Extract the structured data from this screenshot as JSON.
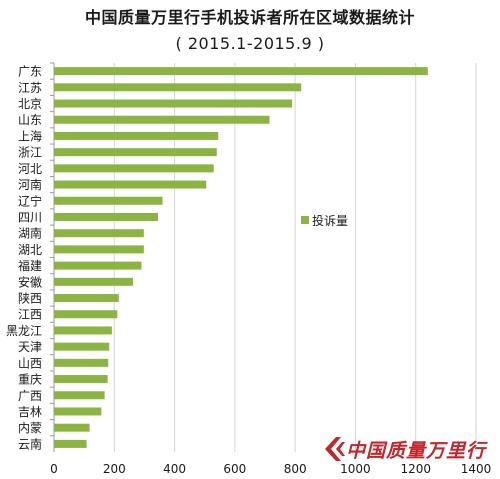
{
  "title": "中国质量万里行手机投诉者所在区域数据统计",
  "subtitle": "( 2015.1-2015.9 )",
  "watermark": {
    "text": "中国质量万里行",
    "color": "#c1272d",
    "icon": "chevron-logo-icon"
  },
  "chart_data": {
    "type": "bar",
    "orientation": "horizontal",
    "title": "中国质量万里行手机投诉者所在区域数据统计",
    "subtitle": "( 2015.1-2015.9 )",
    "categories": [
      "广东",
      "江苏",
      "北京",
      "山东",
      "上海",
      "浙江",
      "河北",
      "河南",
      "辽宁",
      "四川",
      "湖南",
      "湖北",
      "福建",
      "安徽",
      "陕西",
      "江西",
      "黑龙江",
      "天津",
      "山西",
      "重庆",
      "广西",
      "吉林",
      "内蒙",
      "云南"
    ],
    "series": [
      {
        "name": "投诉量",
        "color": "#8cb442",
        "values": [
          1240,
          820,
          790,
          715,
          545,
          540,
          530,
          505,
          360,
          345,
          298,
          298,
          290,
          262,
          215,
          210,
          192,
          183,
          180,
          178,
          168,
          157,
          118,
          108
        ]
      }
    ],
    "xlim": [
      0,
      1400
    ],
    "xticks": [
      0,
      200,
      400,
      600,
      800,
      1000,
      1200,
      1400
    ],
    "grid": "vertical",
    "legend": "right"
  }
}
